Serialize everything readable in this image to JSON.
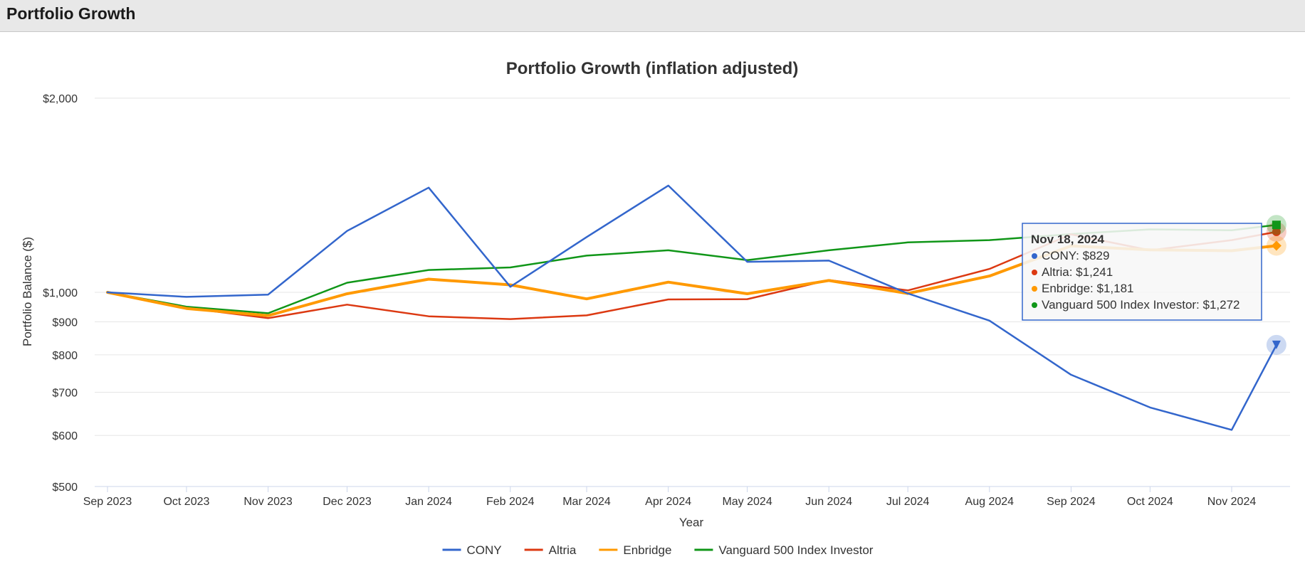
{
  "panel": {
    "title": "Portfolio Growth"
  },
  "chart_data": {
    "type": "line",
    "title": "Portfolio Growth (inflation adjusted)",
    "xlabel": "Year",
    "ylabel": "Portfolio Balance ($)",
    "y_scale": "log",
    "ylim": [
      500,
      2000
    ],
    "y_ticks": [
      500,
      600,
      700,
      800,
      900,
      1000,
      2000
    ],
    "y_tick_labels": [
      "$500",
      "$600",
      "$700",
      "$800",
      "$900",
      "$1,000",
      "$2,000"
    ],
    "x": [
      "2023-09-01",
      "2023-10-01",
      "2023-11-01",
      "2023-12-01",
      "2024-01-01",
      "2024-02-01",
      "2024-03-01",
      "2024-04-01",
      "2024-05-01",
      "2024-06-01",
      "2024-07-01",
      "2024-08-01",
      "2024-09-01",
      "2024-10-01",
      "2024-11-01",
      "2024-11-18"
    ],
    "x_ticks": [
      "2023-09-01",
      "2023-10-01",
      "2023-11-01",
      "2023-12-01",
      "2024-01-01",
      "2024-02-01",
      "2024-03-01",
      "2024-04-01",
      "2024-05-01",
      "2024-06-01",
      "2024-07-01",
      "2024-08-01",
      "2024-09-01",
      "2024-10-01",
      "2024-11-01"
    ],
    "x_tick_labels": [
      "Sep 2023",
      "Oct 2023",
      "Nov 2023",
      "Dec 2023",
      "Jan 2024",
      "Feb 2024",
      "Mar 2024",
      "Apr 2024",
      "May 2024",
      "Jun 2024",
      "Jul 2024",
      "Aug 2024",
      "Sep 2024",
      "Oct 2024",
      "Nov 2024"
    ],
    "series": [
      {
        "name": "CONY",
        "color": "#3366cc",
        "marker": "triangle-down",
        "values": [
          1000,
          984,
          992,
          1245,
          1453,
          1020,
          1218,
          1464,
          1115,
          1120,
          996,
          904,
          745,
          663,
          612,
          829
        ]
      },
      {
        "name": "Altria",
        "color": "#dc3912",
        "marker": "circle",
        "values": [
          1000,
          946,
          912,
          957,
          918,
          909,
          921,
          975,
          976,
          1045,
          1007,
          1087,
          1230,
          1162,
          1205,
          1241
        ]
      },
      {
        "name": "Enbridge",
        "color": "#ff9900",
        "marker": "diamond",
        "values": [
          1000,
          944,
          920,
          995,
          1048,
          1027,
          977,
          1037,
          995,
          1043,
          996,
          1060,
          1180,
          1164,
          1160,
          1181
        ]
      },
      {
        "name": "Vanguard 500 Index Investor",
        "color": "#109618",
        "marker": "square",
        "values": [
          1000,
          950,
          928,
          1035,
          1083,
          1093,
          1140,
          1162,
          1122,
          1162,
          1195,
          1205,
          1231,
          1252,
          1248,
          1272
        ]
      }
    ],
    "legend": "bottom-center",
    "grid": true,
    "tooltip": {
      "title": "Nov 18, 2024",
      "rows": [
        "CONY: $829",
        "Altria: $1,241",
        "Enbridge: $1,181",
        "Vanguard 500 Index Investor: $1,272"
      ]
    }
  }
}
